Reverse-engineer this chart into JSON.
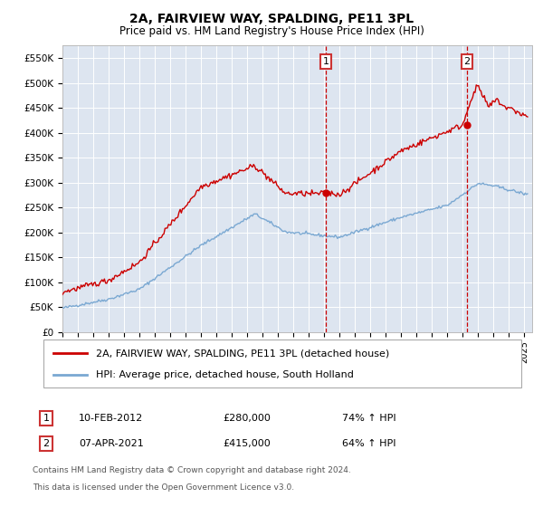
{
  "title": "2A, FAIRVIEW WAY, SPALDING, PE11 3PL",
  "subtitle": "Price paid vs. HM Land Registry's House Price Index (HPI)",
  "ylabel_ticks": [
    "£0",
    "£50K",
    "£100K",
    "£150K",
    "£200K",
    "£250K",
    "£300K",
    "£350K",
    "£400K",
    "£450K",
    "£500K",
    "£550K"
  ],
  "ytick_values": [
    0,
    50000,
    100000,
    150000,
    200000,
    250000,
    300000,
    350000,
    400000,
    450000,
    500000,
    550000
  ],
  "ylim": [
    0,
    575000
  ],
  "xlim_start": 1995.0,
  "xlim_end": 2025.5,
  "background_color": "#dde5f0",
  "grid_color": "#ffffff",
  "legend_label_red": "2A, FAIRVIEW WAY, SPALDING, PE11 3PL (detached house)",
  "legend_label_blue": "HPI: Average price, detached house, South Holland",
  "sale1_date_x": 2012.1,
  "sale1_price": 280000,
  "sale1_date_str": "10-FEB-2012",
  "sale1_hpi": "74% ↑ HPI",
  "sale2_date_x": 2021.27,
  "sale2_price": 415000,
  "sale2_date_str": "07-APR-2021",
  "sale2_hpi": "64% ↑ HPI",
  "footnote1": "Contains HM Land Registry data © Crown copyright and database right 2024.",
  "footnote2": "This data is licensed under the Open Government Licence v3.0.",
  "red_color": "#cc0000",
  "blue_color": "#7aa8d2",
  "marker_red": "#cc0000"
}
